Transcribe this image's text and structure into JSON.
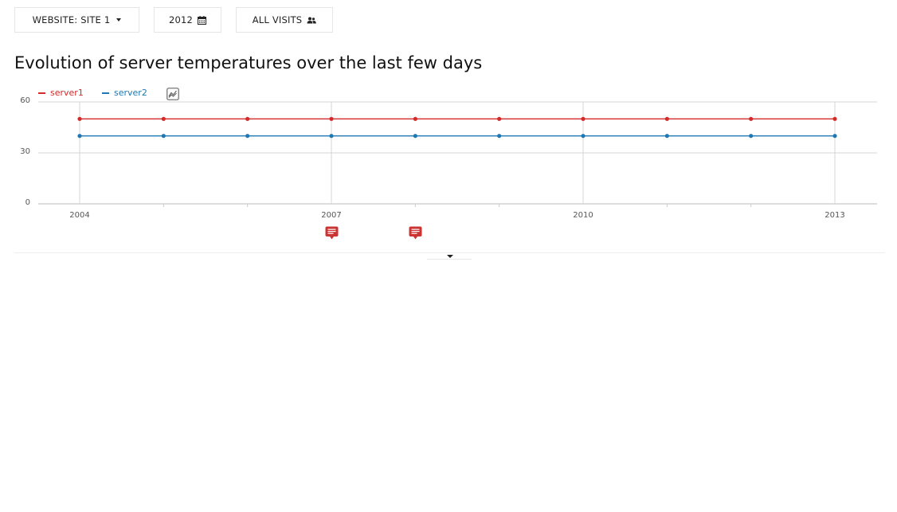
{
  "selectors": {
    "site_label": "WEBSITE: SITE 1",
    "period_label": "2012",
    "segment_label": "ALL VISITS"
  },
  "widget": {
    "title": "Evolution of server temperatures over the last few days"
  },
  "colors": {
    "server1": "#d42a2a",
    "server2": "#1f78b4",
    "grid": "#d5d5d5",
    "annotation": "#cc3333"
  },
  "icons": {
    "site_caret": "chevron-down-icon",
    "period": "calendar-icon",
    "segment": "users-icon",
    "metric_picker": "line-chart-icon",
    "annotation": "comment-icon",
    "expander": "chevron-down-icon"
  },
  "chart_data": {
    "type": "line",
    "x": [
      2004,
      2005,
      2006,
      2007,
      2008,
      2009,
      2010,
      2011,
      2012,
      2013
    ],
    "x_tick_labels": [
      "2004",
      "2007",
      "2010",
      "2013"
    ],
    "x_tick_values": [
      2004,
      2007,
      2010,
      2013
    ],
    "y_tick_labels": [
      "60",
      "30",
      "0"
    ],
    "y_tick_values": [
      60,
      30,
      0
    ],
    "ylim": [
      0,
      60
    ],
    "grid": true,
    "legend": "top-left",
    "series": [
      {
        "name": "server1",
        "values": [
          50,
          50,
          50,
          50,
          50,
          50,
          50,
          50,
          50,
          50
        ]
      },
      {
        "name": "server2",
        "values": [
          40,
          40,
          40,
          40,
          40,
          40,
          40,
          40,
          40,
          40
        ]
      }
    ],
    "annotations_at": [
      2007,
      2008
    ]
  }
}
